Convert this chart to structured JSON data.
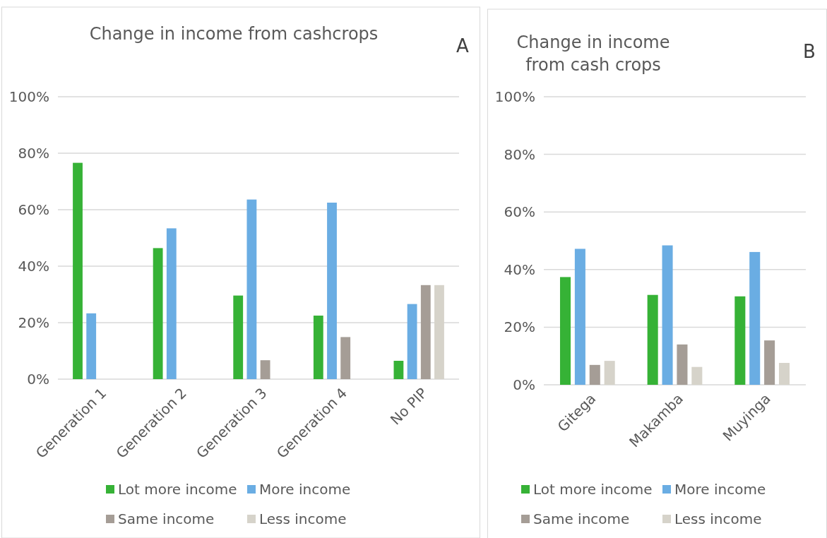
{
  "chart_data": [
    {
      "type": "bar",
      "title": "Change in income from cashcrops",
      "annotations": [
        "A"
      ],
      "categories": [
        "Generation 1",
        "Generation 2",
        "Generation 3",
        "Generation 4",
        "No PIP"
      ],
      "series": [
        {
          "name": "Lot more income",
          "color": "#36b236",
          "values": [
            76.6,
            46.4,
            29.6,
            22.5,
            6.5
          ]
        },
        {
          "name": "More income",
          "color": "#6aade3",
          "values": [
            23.3,
            53.4,
            63.6,
            62.5,
            26.6
          ]
        },
        {
          "name": "Same income",
          "color": "#a59d96",
          "values": [
            null,
            null,
            6.7,
            14.9,
            33.3
          ]
        },
        {
          "name": "Less income",
          "color": "#d6d3ca",
          "values": [
            null,
            null,
            null,
            null,
            33.3
          ]
        }
      ],
      "ylim": [
        0,
        100
      ],
      "yticks": [
        {
          "value": 0,
          "label": "0%"
        },
        {
          "value": 20,
          "label": "20%"
        },
        {
          "value": 40,
          "label": "40%"
        },
        {
          "value": 60,
          "label": "60%"
        },
        {
          "value": 80,
          "label": "80%"
        },
        {
          "value": 100,
          "label": "100%"
        }
      ],
      "grid": "y",
      "legend": "bottom"
    },
    {
      "type": "bar",
      "title": "Change in income from cash crops",
      "annotations": [
        "B"
      ],
      "categories": [
        "Gitega",
        "Makamba",
        "Muyinga"
      ],
      "series": [
        {
          "name": "Lot more income",
          "color": "#36b236",
          "values": [
            37.4,
            31.2,
            30.7
          ]
        },
        {
          "name": "More income",
          "color": "#6aade3",
          "values": [
            47.2,
            48.4,
            46.1
          ]
        },
        {
          "name": "Same income",
          "color": "#a59d96",
          "values": [
            6.9,
            14.0,
            15.4
          ]
        },
        {
          "name": "Less income",
          "color": "#d6d3ca",
          "values": [
            8.3,
            6.2,
            7.6
          ]
        }
      ],
      "ylim": [
        0,
        100
      ],
      "yticks": [
        {
          "value": 0,
          "label": "0%"
        },
        {
          "value": 20,
          "label": "20%"
        },
        {
          "value": 40,
          "label": "40%"
        },
        {
          "value": 60,
          "label": "60%"
        },
        {
          "value": 80,
          "label": "80%"
        },
        {
          "value": 100,
          "label": "100%"
        }
      ],
      "grid": "y",
      "legend": "bottom"
    }
  ]
}
